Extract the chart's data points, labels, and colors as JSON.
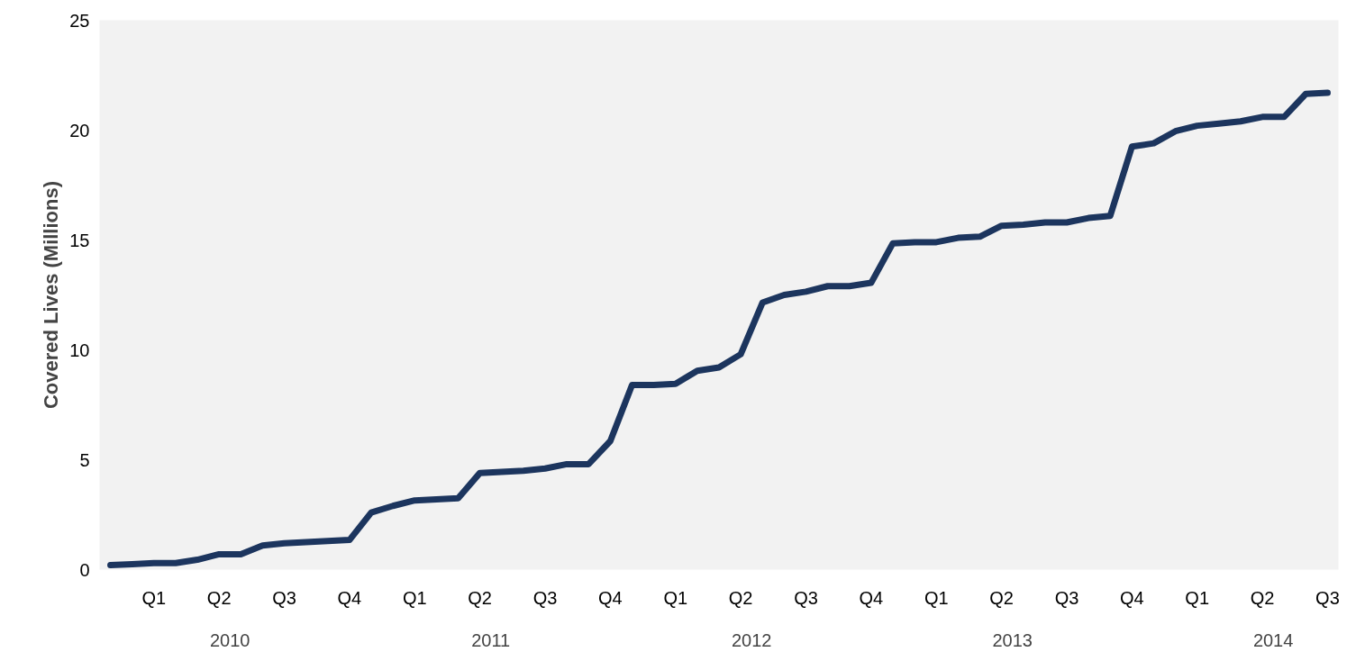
{
  "chart_data": {
    "type": "line",
    "ylabel": "Covered Lives (Millions)",
    "categories": [
      null,
      null,
      "Q1",
      null,
      null,
      "Q2",
      null,
      null,
      "Q3",
      null,
      null,
      "Q4",
      null,
      null,
      "Q1",
      null,
      null,
      "Q2",
      null,
      null,
      "Q3",
      null,
      null,
      "Q4",
      null,
      null,
      "Q1",
      null,
      null,
      "Q2",
      null,
      null,
      "Q3",
      null,
      null,
      "Q4",
      null,
      null,
      "Q1",
      null,
      null,
      "Q2",
      null,
      null,
      "Q3",
      null,
      null,
      "Q4",
      null,
      null,
      "Q1",
      null,
      null,
      "Q2",
      null,
      null,
      "Q3"
    ],
    "series": [
      {
        "color": "#1c355e",
        "values": [
          0.2,
          0.25,
          0.3,
          0.3,
          0.45,
          0.7,
          0.7,
          1.1,
          1.2,
          1.25,
          1.3,
          1.35,
          2.6,
          2.9,
          3.15,
          3.2,
          3.25,
          4.4,
          4.45,
          4.5,
          4.6,
          4.8,
          4.8,
          5.85,
          8.4,
          8.4,
          8.45,
          9.05,
          9.2,
          9.8,
          12.15,
          12.5,
          12.65,
          12.9,
          12.9,
          13.05,
          14.85,
          14.9,
          14.9,
          15.1,
          15.15,
          15.65,
          15.7,
          15.8,
          15.8,
          16.0,
          16.1,
          19.25,
          19.4,
          19.95,
          20.2,
          20.3,
          20.4,
          20.6,
          20.6,
          21.65,
          21.7
        ]
      }
    ],
    "annotations": [
      "2010",
      "2011",
      "2012",
      "2013",
      "2014"
    ],
    "ylim": [
      0,
      25
    ],
    "yticks": [
      0,
      5,
      10,
      15,
      20,
      25
    ],
    "grid": false,
    "marker": "none",
    "line_style": "solid"
  }
}
